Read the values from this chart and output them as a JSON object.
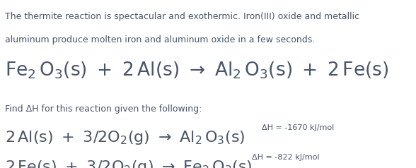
{
  "bg_color": "#ffffff",
  "text_color": "#4a5568",
  "desc_line1": "The thermite reaction is spectacular and exothermic. Iron(III) oxide and metallic",
  "desc_line2": "aluminum produce molten iron and aluminum oxide in a few seconds.",
  "desc_fontsize": 9.0,
  "main_eq_fontsize": 19,
  "sub_eq_fontsize": 16,
  "find_text": "Find ΔH for this reaction given the following:",
  "find_fontsize": 9.0,
  "dh1_text": "ΔH = -1670 kJ/mol",
  "dh2_text": "ΔH = -822 kJ/mol",
  "dh_fontsize": 8.0,
  "fig_width": 5.88,
  "fig_height": 2.38,
  "dpi": 100
}
